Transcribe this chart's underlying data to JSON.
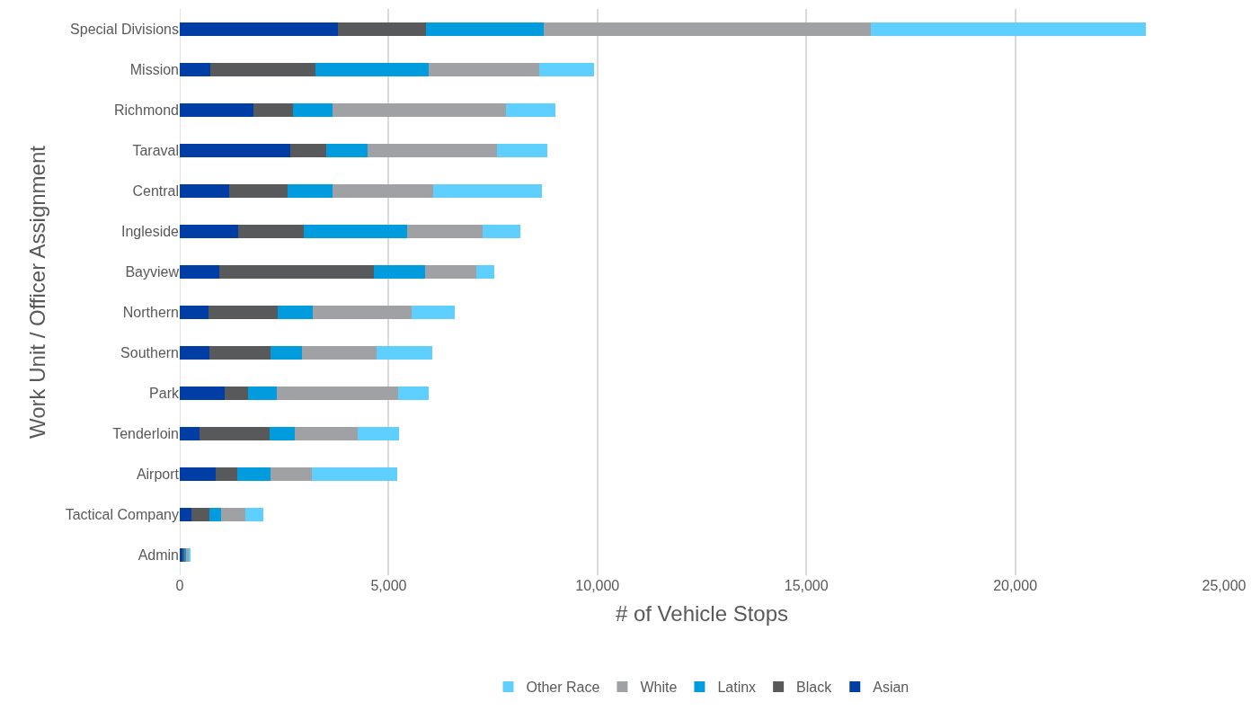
{
  "chart_data": {
    "type": "bar",
    "orientation": "horizontal",
    "stacked": true,
    "xlabel": "# of Vehicle Stops",
    "ylabel": "Work Unit / Officer Assignment",
    "categories": [
      "Special Divisions",
      "Mission",
      "Richmond",
      "Taraval",
      "Central",
      "Ingleside",
      "Bayview",
      "Northern",
      "Southern",
      "Park",
      "Tenderloin",
      "Airport",
      "Tactical Company",
      "Admin"
    ],
    "series": [
      {
        "name": "Asian",
        "color": "#003da5",
        "values": [
          3790,
          740,
          1760,
          2640,
          1180,
          1390,
          940,
          680,
          700,
          1070,
          480,
          870,
          280,
          80
        ]
      },
      {
        "name": "Black",
        "color": "#58595b",
        "values": [
          2110,
          2510,
          960,
          870,
          1410,
          1570,
          3700,
          1670,
          1480,
          560,
          1680,
          500,
          420,
          30
        ]
      },
      {
        "name": "Latinx",
        "color": "#009cde",
        "values": [
          2820,
          2720,
          940,
          980,
          1070,
          2490,
          1240,
          830,
          740,
          700,
          590,
          810,
          280,
          40
        ]
      },
      {
        "name": "White",
        "color": "#a0a1a4",
        "values": [
          7820,
          2640,
          4140,
          3110,
          2400,
          1800,
          1220,
          2380,
          1790,
          2900,
          1500,
          980,
          590,
          70
        ]
      },
      {
        "name": "Other Race",
        "color": "#5ecfff",
        "values": [
          6580,
          1310,
          1200,
          1200,
          2610,
          900,
          440,
          1020,
          1330,
          720,
          1000,
          2050,
          430,
          30
        ]
      }
    ],
    "xlim": [
      0,
      25000
    ],
    "xticks": [
      0,
      {
        "value": 5000,
        "label": "5,000"
      },
      {
        "value": 10000,
        "label": "10,000"
      },
      {
        "value": 15000,
        "label": "15,000"
      },
      {
        "value": 20000,
        "label": "20,000"
      },
      {
        "value": 25000,
        "label": "25,000"
      }
    ],
    "grid": "x",
    "legend": "bottom"
  }
}
